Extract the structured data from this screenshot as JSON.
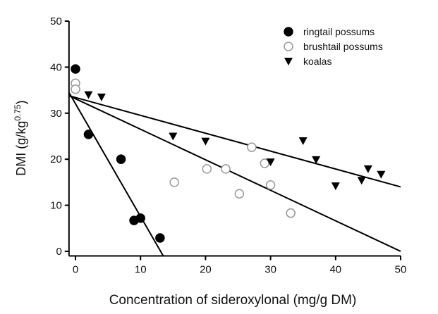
{
  "chart_data": {
    "type": "scatter",
    "xlabel": "Concentration of sideroxylonal (mg/g DM)",
    "ylabel": "DMI (g/kg",
    "ylabel_sup": "0.75",
    "ylabel_end": ")",
    "xlim": [
      -1,
      50
    ],
    "ylim": [
      -1,
      50
    ],
    "xticks": [
      0,
      10,
      20,
      30,
      40,
      50
    ],
    "yticks": [
      0,
      10,
      20,
      30,
      40,
      50
    ],
    "legend": "top-right",
    "series": [
      {
        "name": "ringtail possums",
        "color": "#000000",
        "marker": "circle",
        "filled": true,
        "x": [
          0,
          2,
          7,
          9,
          10,
          13
        ],
        "values": [
          39.6,
          25.4,
          20,
          6.7,
          7.2,
          2.9
        ],
        "fit": {
          "x": [
            -1,
            13.5
          ],
          "values": [
            34.5,
            -1
          ]
        }
      },
      {
        "name": "brushtail possums",
        "color": "#000000",
        "marker": "circle",
        "filled": false,
        "x": [
          0,
          0,
          15.2,
          20.2,
          23.1,
          25.2,
          27.1,
          29.1,
          30,
          33.1
        ],
        "values": [
          36.5,
          35.2,
          15,
          17.9,
          17.9,
          12.5,
          22.6,
          19.1,
          14.4,
          8.3
        ],
        "fit": {
          "x": [
            -1,
            50
          ],
          "values": [
            33.8,
            0
          ]
        }
      },
      {
        "name": "koalas",
        "color": "#000000",
        "marker": "triangle-down",
        "filled": true,
        "x": [
          2,
          4,
          15,
          20,
          30,
          35,
          37,
          40,
          44,
          45,
          47
        ],
        "values": [
          34,
          33.5,
          25,
          23.9,
          19.4,
          24,
          19.9,
          14.2,
          15.4,
          17.9,
          16.7
        ],
        "fit": {
          "x": [
            -1,
            50
          ],
          "values": [
            33.8,
            14
          ]
        }
      }
    ]
  }
}
